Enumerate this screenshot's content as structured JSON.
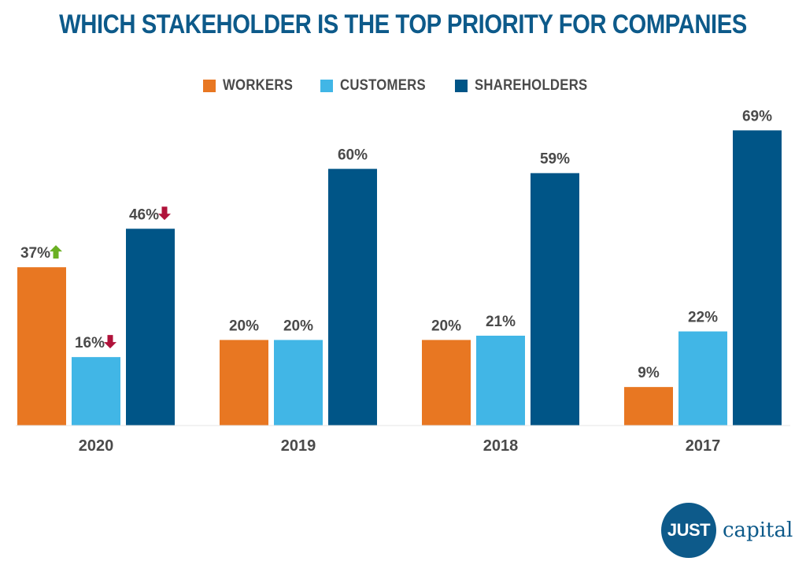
{
  "colors": {
    "workers": "#e87722",
    "customers": "#41b6e6",
    "shareholders": "#005587",
    "arrow_up": "#6ab023",
    "arrow_down": "#b0123a",
    "text": "#4a4a4a",
    "title": "#0d5a8a"
  },
  "chart_data": {
    "type": "bar",
    "title": "WHICH STAKEHOLDER IS THE TOP PRIORITY FOR COMPANIES",
    "categories": [
      "2020",
      "2019",
      "2018",
      "2017"
    ],
    "series": [
      {
        "name": "WORKERS",
        "key": "workers",
        "values": [
          37,
          20,
          20,
          9
        ],
        "labels": [
          "37%",
          "20%",
          "20%",
          "9%"
        ]
      },
      {
        "name": "CUSTOMERS",
        "key": "customers",
        "values": [
          16,
          20,
          21,
          22
        ],
        "labels": [
          "16%",
          "20%",
          "21%",
          "22%"
        ]
      },
      {
        "name": "SHAREHOLDERS",
        "key": "shareholders",
        "values": [
          46,
          60,
          59,
          69
        ],
        "labels": [
          "46%",
          "60%",
          "59%",
          "69%"
        ]
      }
    ],
    "indicators": [
      {
        "category": "2020",
        "series": "WORKERS",
        "direction": "up"
      },
      {
        "category": "2020",
        "series": "CUSTOMERS",
        "direction": "down"
      },
      {
        "category": "2020",
        "series": "SHAREHOLDERS",
        "direction": "down"
      }
    ],
    "ylim": [
      0,
      70
    ],
    "grid": false,
    "legend_position": "top-center"
  },
  "logo": {
    "mark": "JUST",
    "word": "capital"
  }
}
